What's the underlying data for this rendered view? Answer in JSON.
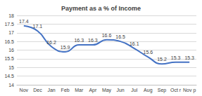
{
  "chart_data": {
    "type": "line",
    "title": "Payment as a % of Income",
    "categories": [
      "Nov",
      "Dec",
      "Jan",
      "Feb",
      "Mar",
      "Apr",
      "May",
      "Jun",
      "Jul",
      "Aug",
      "Sep",
      "Oct r",
      "Nov p"
    ],
    "values": [
      17.4,
      17.1,
      16.2,
      15.9,
      16.3,
      16.3,
      16.6,
      16.5,
      16.1,
      15.6,
      15.2,
      15.3,
      15.3
    ],
    "color": "#4472c4",
    "ylim": [
      14,
      18
    ],
    "yticks": [
      14,
      14.5,
      15,
      15.5,
      16,
      16.5,
      17,
      17.5,
      18
    ],
    "grid": true,
    "data_labels": true
  }
}
